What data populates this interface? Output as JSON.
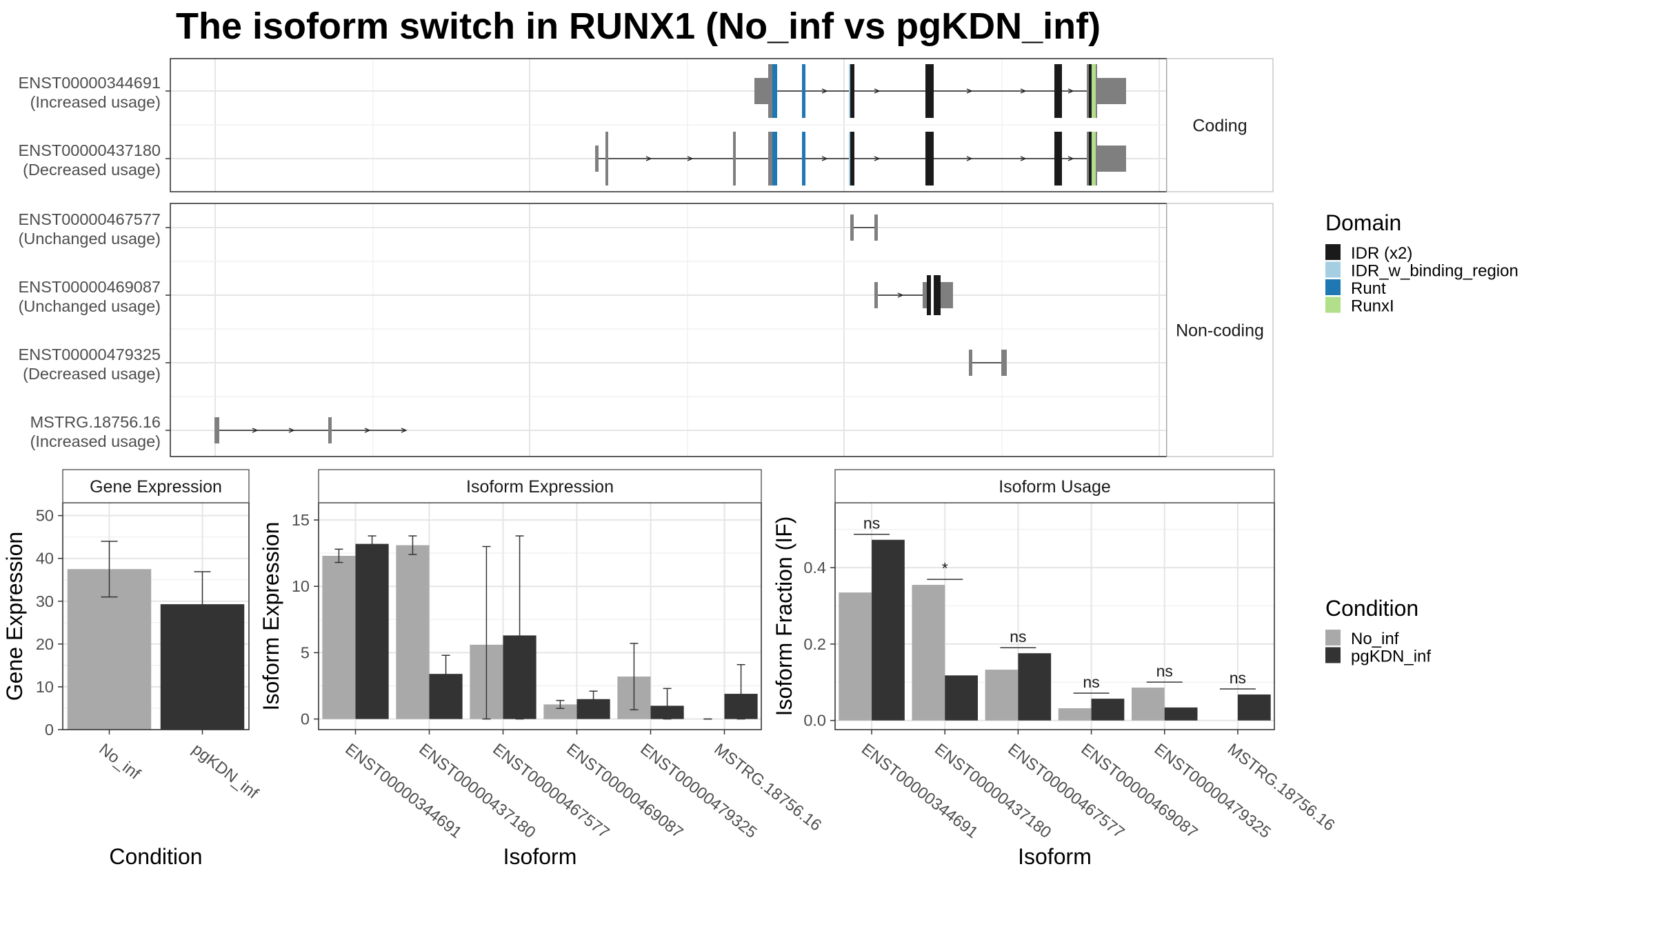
{
  "title": "The isoform switch in RUNX1 (No_inf vs pgKDN_inf)",
  "colors": {
    "no_inf": "#a9a9a9",
    "pgkdn_inf": "#333333",
    "utr": "#7f7f7f",
    "domain_IDR": "#1a1a1a",
    "domain_IDR_w_binding_region": "#a6cee3",
    "domain_Runt": "#1f78b4",
    "domain_RunxI": "#b2df8a"
  },
  "structure": {
    "facets": [
      "Coding",
      "Non-coding"
    ],
    "transcripts": [
      {
        "id": "ENST00000344691",
        "usage": "(Increased usage)",
        "facet": "Coding"
      },
      {
        "id": "ENST00000437180",
        "usage": "(Decreased usage)",
        "facet": "Coding"
      },
      {
        "id": "ENST00000467577",
        "usage": "(Unchanged usage)",
        "facet": "Non-coding"
      },
      {
        "id": "ENST00000469087",
        "usage": "(Unchanged usage)",
        "facet": "Non-coding"
      },
      {
        "id": "ENST00000479325",
        "usage": "(Decreased usage)",
        "facet": "Non-coding"
      },
      {
        "id": "MSTRG.18756.16",
        "usage": "(Increased usage)",
        "facet": "Non-coding"
      }
    ]
  },
  "legends": {
    "domain": {
      "title": "Domain",
      "items": [
        {
          "label": "IDR (x2)",
          "color_key": "domain_IDR"
        },
        {
          "label": "IDR_w_binding_region",
          "color_key": "domain_IDR_w_binding_region"
        },
        {
          "label": "Runt",
          "color_key": "domain_Runt"
        },
        {
          "label": "RunxI",
          "color_key": "domain_RunxI"
        }
      ]
    },
    "condition": {
      "title": "Condition",
      "items": [
        {
          "label": "No_inf",
          "color_key": "no_inf"
        },
        {
          "label": "pgKDN_inf",
          "color_key": "pgkdn_inf"
        }
      ]
    }
  },
  "chart_data": [
    {
      "type": "bar",
      "strip": "Gene Expression",
      "xlabel": "Condition",
      "ylabel": "Gene Expression",
      "ylim": [
        0,
        53
      ],
      "yticks": [
        0,
        10,
        20,
        30,
        40,
        50
      ],
      "categories": [
        "No_inf",
        "pgKDN_inf"
      ],
      "values": [
        37.5,
        29.3
      ],
      "err_low": [
        31.0,
        22.0
      ],
      "err_high": [
        44.0,
        36.9
      ],
      "color_keys": [
        "no_inf",
        "pgkdn_inf"
      ]
    },
    {
      "type": "bar",
      "strip": "Isoform Expression",
      "xlabel": "Isoform",
      "ylabel": "Isoform Expression",
      "ylim": [
        -0.8,
        16.3
      ],
      "yticks": [
        0,
        5,
        10,
        15
      ],
      "categories": [
        "ENST00000344691",
        "ENST00000437180",
        "ENST00000467577",
        "ENST00000469087",
        "ENST00000479325",
        "MSTRG.18756.16"
      ],
      "series": [
        {
          "name": "No_inf",
          "color_key": "no_inf",
          "values": [
            12.3,
            13.1,
            5.6,
            1.1,
            3.2,
            0.0
          ],
          "err_low": [
            11.8,
            12.4,
            0.0,
            0.8,
            0.7,
            0.0
          ],
          "err_high": [
            12.8,
            13.8,
            13.0,
            1.4,
            5.7,
            0.0
          ]
        },
        {
          "name": "pgKDN_inf",
          "color_key": "pgkdn_inf",
          "values": [
            13.2,
            3.4,
            6.3,
            1.5,
            1.0,
            1.9
          ],
          "err_low": [
            12.6,
            2.0,
            0.0,
            0.9,
            0.0,
            0.0
          ],
          "err_high": [
            13.8,
            4.8,
            13.8,
            2.1,
            2.3,
            4.1
          ]
        }
      ]
    },
    {
      "type": "bar",
      "strip": "Isoform Usage",
      "xlabel": "Isoform",
      "ylabel": "Isoform Fraction (IF)",
      "ylim": [
        -0.024,
        0.57
      ],
      "yticks": [
        0.0,
        0.2,
        0.4
      ],
      "ytick_labels": [
        "0.0",
        "0.2",
        "0.4"
      ],
      "categories": [
        "ENST00000344691",
        "ENST00000437180",
        "ENST00000467577",
        "ENST00000469087",
        "ENST00000479325",
        "MSTRG.18756.16"
      ],
      "series": [
        {
          "name": "No_inf",
          "color_key": "no_inf",
          "values": [
            0.335,
            0.355,
            0.133,
            0.032,
            0.086,
            0.0
          ]
        },
        {
          "name": "pgKDN_inf",
          "color_key": "pgkdn_inf",
          "values": [
            0.473,
            0.118,
            0.176,
            0.057,
            0.034,
            0.068
          ]
        }
      ],
      "significance": [
        "ns",
        "*",
        "ns",
        "ns",
        "ns",
        "ns"
      ]
    }
  ]
}
